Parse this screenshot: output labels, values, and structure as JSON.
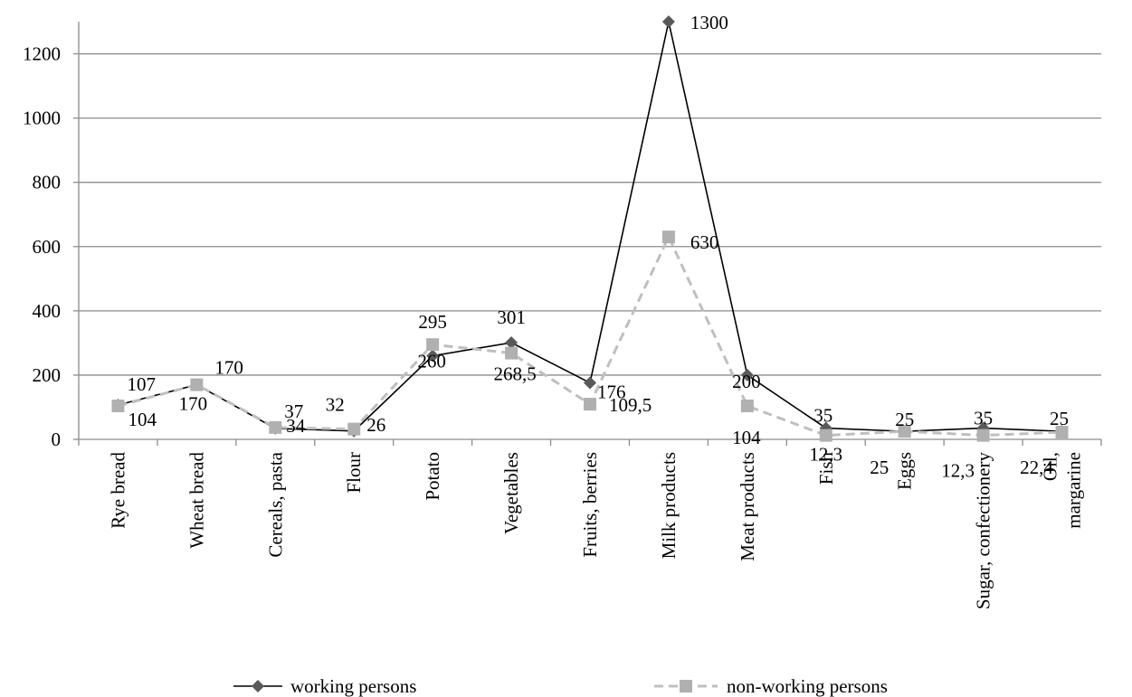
{
  "chart_data": {
    "type": "line",
    "categories": [
      [
        "Rye bread"
      ],
      [
        "Wheat bread"
      ],
      [
        "Cereals, pasta"
      ],
      [
        "Flour"
      ],
      [
        "Potato"
      ],
      [
        "Vegetables"
      ],
      [
        "Fruits, berries"
      ],
      [
        "Milk products"
      ],
      [
        "Meat products"
      ],
      [
        "Fish"
      ],
      [
        "Eggs"
      ],
      [
        "Sugar, confectionery"
      ],
      [
        "Oil,",
        "margarine"
      ]
    ],
    "ylim": [
      0,
      1300
    ],
    "yticks": [
      "0",
      "200",
      "400",
      "600",
      "800",
      "1000",
      "1200"
    ],
    "grid": true,
    "legend_position": "bottom",
    "series": [
      {
        "name": "working persons",
        "color": "#000000",
        "marker_color": "#595959",
        "marker": "diamond",
        "dash": "solid",
        "values": [
          107,
          170,
          34,
          26,
          260,
          301,
          176,
          1300,
          200,
          35,
          25,
          35,
          25
        ],
        "labels": [
          "107",
          "170",
          "34",
          "26",
          "260",
          "301",
          "176",
          "1300",
          "200",
          "35",
          "25",
          "35",
          "25"
        ]
      },
      {
        "name": "non-working persons",
        "color": "#bfbfbf",
        "marker_color": "#b0b0b0",
        "marker": "square",
        "dash": "dashed",
        "values": [
          104,
          170,
          37,
          32,
          295,
          268.5,
          109.5,
          630,
          104,
          12.3,
          25,
          12.3,
          22.4
        ],
        "labels": [
          "104",
          "170",
          "37",
          "32",
          "295",
          "268,5",
          "109,5",
          "630",
          "104",
          "12,3",
          "25",
          "12,3",
          "22,4"
        ]
      }
    ]
  }
}
